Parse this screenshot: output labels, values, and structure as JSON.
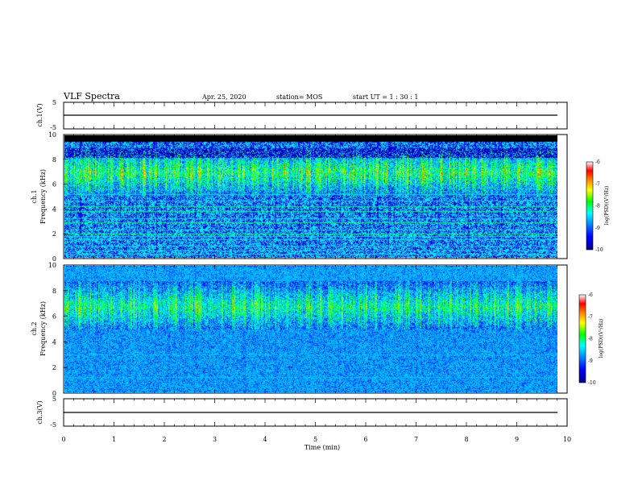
{
  "header": {
    "title": "VLF Spectra",
    "date": "Apr. 25, 2020",
    "station": "station= MOS",
    "start": "start  UT =   1 : 30 : 1"
  },
  "chart_data": [
    {
      "type": "line",
      "name": "ch1-waveform",
      "ylabel": "ch.1(V)",
      "ylim": [
        -5,
        5
      ],
      "yticks": [
        "5",
        "-5"
      ],
      "x": [
        0,
        9.8
      ],
      "values": [
        0,
        0
      ]
    },
    {
      "type": "heatmap",
      "name": "ch1-spectrogram",
      "ylabel": "ch.1\nFrequency (kHz)",
      "ylim": [
        0,
        10
      ],
      "yticks": [
        "10",
        "8",
        "6",
        "4",
        "2",
        "0"
      ],
      "xlim": [
        0,
        9.8
      ],
      "emission_band_khz": [
        5.0,
        9.0
      ],
      "emission_peak_khz": 7.0,
      "background_cutoff_khz": 9.5,
      "spectral_lines_khz": [
        0.3,
        0.6,
        1.0,
        1.5,
        1.8,
        2.0,
        2.3,
        2.9,
        3.2,
        3.8,
        4.2,
        4.7,
        5.2
      ],
      "colorbar": {
        "label": "log(PSD)(V²/Hz)",
        "min": -10,
        "max": -6,
        "ticks": [
          "-6",
          "-7",
          "-8",
          "-9",
          "-10"
        ]
      }
    },
    {
      "type": "heatmap",
      "name": "ch2-spectrogram",
      "ylabel": "ch.2\nFrequency (kHz)",
      "ylim": [
        0,
        10
      ],
      "yticks": [
        "10",
        "8",
        "6",
        "4",
        "2",
        "0"
      ],
      "xlim": [
        0,
        9.8
      ],
      "emission_band_khz": [
        5.0,
        8.8
      ],
      "emission_peak_khz": 6.8,
      "spectral_lines_khz": [
        1.2,
        3.0
      ],
      "colorbar": {
        "label": "log(PSD)(V²/Hz)",
        "min": -10,
        "max": -6,
        "ticks": [
          "-6",
          "-7",
          "-8",
          "-9",
          "-10"
        ]
      }
    },
    {
      "type": "line",
      "name": "ch3-waveform",
      "ylabel": "ch.3(V)",
      "ylim": [
        -5,
        5
      ],
      "yticks": [
        "5",
        "-5"
      ],
      "x": [
        0,
        9.8
      ],
      "values": [
        0,
        0
      ],
      "xlabel": "Time (min)",
      "xlim": [
        0,
        10
      ],
      "xticks": [
        "0",
        "1",
        "2",
        "3",
        "4",
        "5",
        "6",
        "7",
        "8",
        "9",
        "10"
      ]
    }
  ],
  "colors": {
    "colormap": [
      "#00008b",
      "#0000ff",
      "#00a0ff",
      "#00ffff",
      "#00ff00",
      "#ffff00",
      "#ff8000",
      "#ff0000",
      "#ffffff"
    ],
    "background": "#000000",
    "axis": "#000000"
  }
}
